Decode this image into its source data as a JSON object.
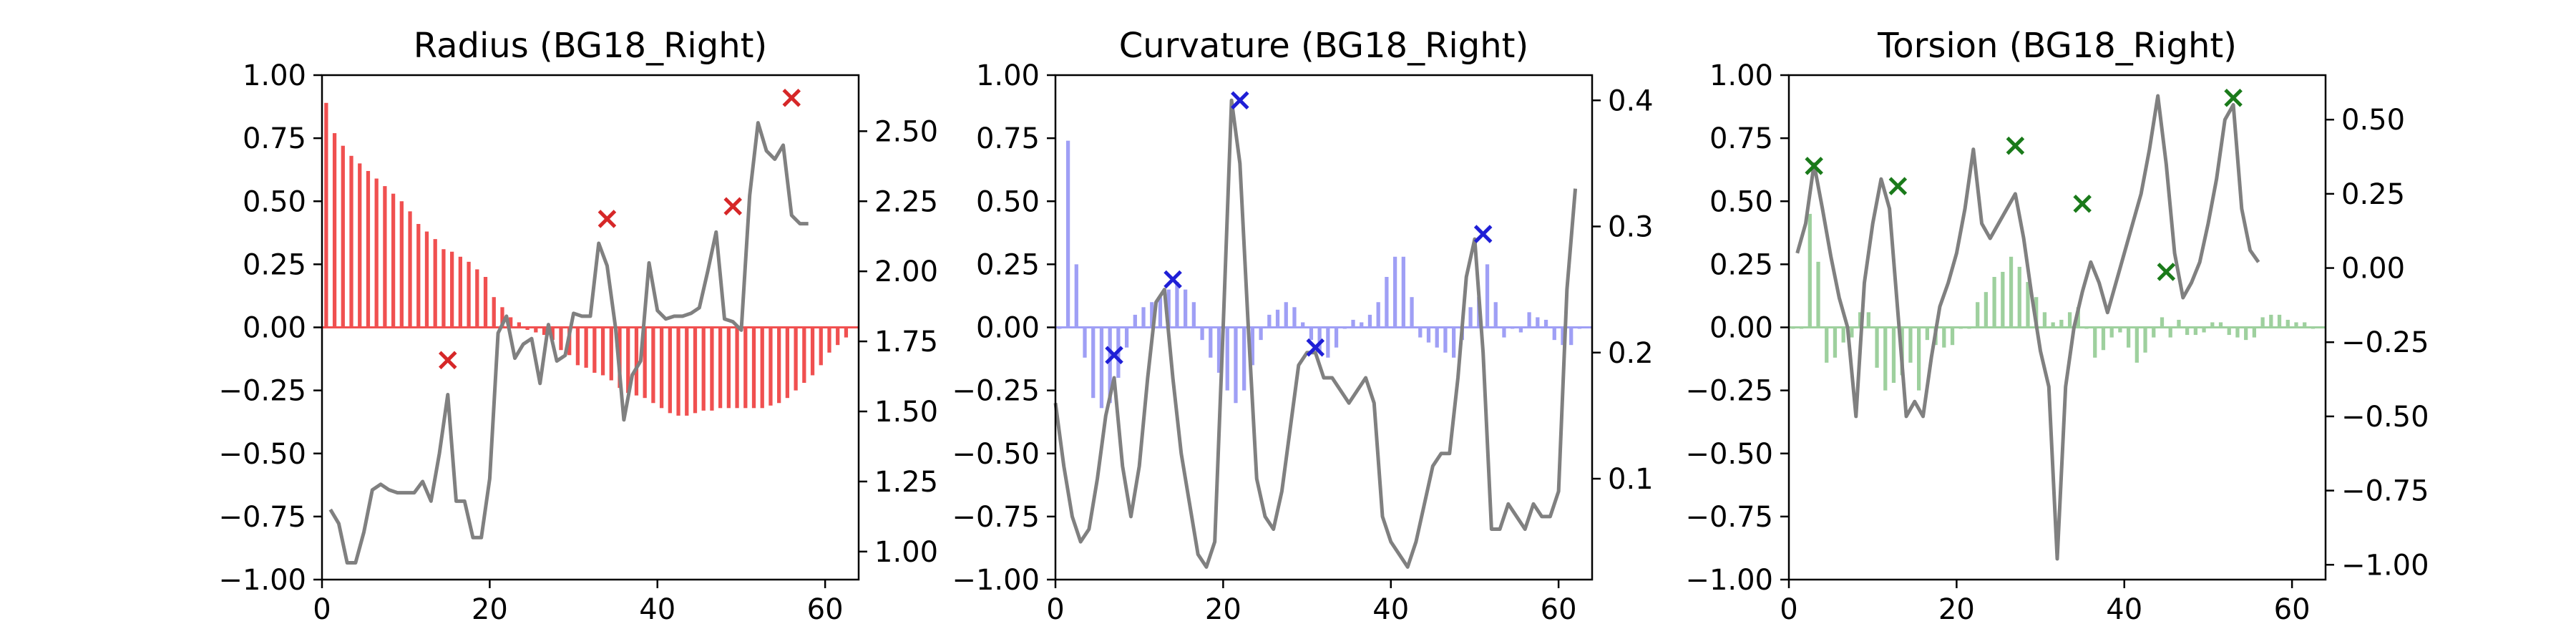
{
  "chart_data": [
    {
      "type": "bar",
      "title": "Radius (BG18_Right)",
      "color": "#f05050",
      "marker_color": "#d62728",
      "line_color": "#808080",
      "xlim": [
        0,
        64
      ],
      "ylim": [
        -1.0,
        1.0
      ],
      "y2lim": [
        0.9,
        2.7
      ],
      "xticks": [
        0,
        20,
        40,
        60
      ],
      "yticks": [
        "1.00",
        "0.75",
        "0.50",
        "0.25",
        "0.00",
        "−0.25",
        "−0.50",
        "−0.75",
        "−1.00"
      ],
      "ytick_values": [
        1.0,
        0.75,
        0.5,
        0.25,
        0.0,
        -0.25,
        -0.5,
        -0.75,
        -1.0
      ],
      "y2ticks": [
        "2.50",
        "2.25",
        "2.00",
        "1.75",
        "1.50",
        "1.25",
        "1.00"
      ],
      "y2tick_values": [
        2.5,
        2.25,
        2.0,
        1.75,
        1.5,
        1.25,
        1.0
      ],
      "bars": [
        0.89,
        0.77,
        0.72,
        0.68,
        0.65,
        0.62,
        0.59,
        0.56,
        0.53,
        0.5,
        0.46,
        0.41,
        0.38,
        0.35,
        0.31,
        0.3,
        0.28,
        0.26,
        0.23,
        0.2,
        0.12,
        0.08,
        0.04,
        0.02,
        -0.01,
        -0.02,
        -0.03,
        -0.05,
        -0.09,
        -0.11,
        -0.15,
        -0.16,
        -0.18,
        -0.19,
        -0.21,
        -0.24,
        -0.26,
        -0.27,
        -0.28,
        -0.3,
        -0.32,
        -0.34,
        -0.35,
        -0.35,
        -0.34,
        -0.33,
        -0.33,
        -0.32,
        -0.32,
        -0.32,
        -0.32,
        -0.32,
        -0.32,
        -0.31,
        -0.3,
        -0.28,
        -0.25,
        -0.22,
        -0.19,
        -0.15,
        -0.1,
        -0.07,
        -0.04
      ],
      "line": [
        1.15,
        1.1,
        0.96,
        0.96,
        1.07,
        1.22,
        1.24,
        1.22,
        1.21,
        1.21,
        1.21,
        1.25,
        1.18,
        1.35,
        1.56,
        1.18,
        1.18,
        1.05,
        1.05,
        1.26,
        1.78,
        1.84,
        1.69,
        1.74,
        1.76,
        1.6,
        1.81,
        1.68,
        1.7,
        1.85,
        1.84,
        1.84,
        2.1,
        2.02,
        1.8,
        1.47,
        1.63,
        1.68,
        2.03,
        1.86,
        1.83,
        1.84,
        1.84,
        1.85,
        1.87,
        2.0,
        2.14,
        1.83,
        1.82,
        1.79,
        2.27,
        2.53,
        2.43,
        2.4,
        2.45,
        2.2,
        2.17,
        2.17
      ],
      "line_x0": 1,
      "peaks": [
        [
          15,
          -0.13
        ],
        [
          34,
          0.43
        ],
        [
          49,
          0.48
        ],
        [
          56,
          0.91
        ]
      ]
    },
    {
      "type": "bar",
      "title": "Curvature (BG18_Right)",
      "color": "#9f9ff5",
      "marker_color": "#1f1fd6",
      "line_color": "#808080",
      "xlim": [
        0,
        64
      ],
      "ylim": [
        -1.0,
        1.0
      ],
      "y2lim": [
        0.02,
        0.42
      ],
      "xticks": [
        0,
        20,
        40,
        60
      ],
      "yticks": [
        "1.00",
        "0.75",
        "0.50",
        "0.25",
        "0.00",
        "−0.25",
        "−0.50",
        "−0.75",
        "−1.00"
      ],
      "ytick_values": [
        1.0,
        0.75,
        0.5,
        0.25,
        0.0,
        -0.25,
        -0.5,
        -0.75,
        -1.0
      ],
      "y2ticks": [
        "0.4",
        "0.3",
        "0.2",
        "0.1"
      ],
      "y2tick_values": [
        0.4,
        0.3,
        0.2,
        0.1
      ],
      "bars": [
        0.0,
        0.74,
        0.25,
        -0.12,
        -0.28,
        -0.32,
        -0.3,
        -0.2,
        -0.08,
        0.05,
        0.08,
        0.1,
        0.12,
        0.15,
        0.18,
        0.15,
        0.1,
        -0.05,
        -0.12,
        -0.18,
        -0.25,
        -0.3,
        -0.25,
        -0.15,
        -0.05,
        0.05,
        0.07,
        0.1,
        0.08,
        0.02,
        -0.05,
        -0.1,
        -0.12,
        -0.08,
        0.0,
        0.03,
        0.02,
        0.05,
        0.1,
        0.2,
        0.28,
        0.28,
        0.12,
        -0.04,
        -0.06,
        -0.08,
        -0.1,
        -0.12,
        -0.05,
        0.08,
        0.12,
        0.25,
        0.1,
        -0.04,
        0.0,
        -0.02,
        0.06,
        0.04,
        0.03,
        -0.05,
        -0.07,
        -0.07,
        0.0
      ],
      "line": [
        0.16,
        0.11,
        0.07,
        0.05,
        0.06,
        0.1,
        0.15,
        0.18,
        0.11,
        0.07,
        0.11,
        0.18,
        0.24,
        0.25,
        0.18,
        0.12,
        0.08,
        0.04,
        0.03,
        0.05,
        0.22,
        0.4,
        0.35,
        0.22,
        0.1,
        0.07,
        0.06,
        0.09,
        0.14,
        0.19,
        0.2,
        0.2,
        0.18,
        0.18,
        0.17,
        0.16,
        0.17,
        0.18,
        0.16,
        0.07,
        0.05,
        0.04,
        0.03,
        0.05,
        0.08,
        0.11,
        0.12,
        0.12,
        0.18,
        0.26,
        0.29,
        0.2,
        0.06,
        0.06,
        0.08,
        0.07,
        0.06,
        0.08,
        0.07,
        0.07,
        0.09,
        0.25,
        0.33
      ],
      "line_x0": 0,
      "peaks": [
        [
          7,
          -0.11
        ],
        [
          14,
          0.19
        ],
        [
          22,
          0.9
        ],
        [
          31,
          -0.08
        ],
        [
          51,
          0.37
        ]
      ]
    },
    {
      "type": "bar",
      "title": "Torsion (BG18_Right)",
      "color": "#9ed09e",
      "marker_color": "#1a7a1a",
      "line_color": "#808080",
      "xlim": [
        0,
        64
      ],
      "ylim": [
        -1.0,
        1.0
      ],
      "y2lim": [
        -1.05,
        0.65
      ],
      "xticks": [
        0,
        20,
        40,
        60
      ],
      "yticks": [
        "1.00",
        "0.75",
        "0.50",
        "0.25",
        "0.00",
        "−0.25",
        "−0.50",
        "−0.75",
        "−1.00"
      ],
      "ytick_values": [
        1.0,
        0.75,
        0.5,
        0.25,
        0.0,
        -0.25,
        -0.5,
        -0.75,
        -1.0
      ],
      "y2ticks": [
        "0.50",
        "0.25",
        "0.00",
        "−0.25",
        "−0.50",
        "−0.75",
        "−1.00"
      ],
      "y2tick_values": [
        0.5,
        0.25,
        0.0,
        -0.25,
        -0.5,
        -0.75,
        -1.0
      ],
      "bars": [
        0.0,
        0.0,
        0.45,
        0.26,
        -0.14,
        -0.12,
        -0.06,
        -0.04,
        0.06,
        0.06,
        -0.16,
        -0.25,
        -0.22,
        -0.19,
        -0.14,
        -0.25,
        -0.05,
        -0.07,
        -0.08,
        -0.07,
        0.0,
        0.0,
        0.1,
        0.14,
        0.2,
        0.22,
        0.28,
        0.24,
        0.18,
        0.12,
        0.06,
        0.02,
        0.03,
        0.06,
        0.08,
        0.0,
        -0.12,
        -0.09,
        -0.04,
        -0.02,
        -0.08,
        -0.14,
        -0.1,
        -0.04,
        0.04,
        -0.04,
        0.03,
        -0.03,
        -0.03,
        -0.02,
        0.02,
        0.02,
        -0.03,
        -0.04,
        -0.05,
        -0.04,
        0.04,
        0.05,
        0.05,
        0.03,
        0.02,
        0.02,
        0.0
      ],
      "line": [
        0.05,
        0.15,
        0.35,
        0.2,
        0.04,
        -0.1,
        -0.2,
        -0.5,
        -0.05,
        0.15,
        0.3,
        0.2,
        -0.15,
        -0.5,
        -0.45,
        -0.5,
        -0.3,
        -0.13,
        -0.05,
        0.05,
        0.2,
        0.4,
        0.15,
        0.1,
        0.15,
        0.2,
        0.25,
        0.1,
        -0.1,
        -0.28,
        -0.4,
        -0.98,
        -0.4,
        -0.2,
        -0.08,
        0.02,
        -0.05,
        -0.15,
        -0.05,
        0.05,
        0.15,
        0.25,
        0.4,
        0.58,
        0.35,
        0.05,
        -0.1,
        -0.05,
        0.02,
        0.15,
        0.3,
        0.5,
        0.55,
        0.2,
        0.06,
        0.02
      ],
      "line_x0": 1,
      "peaks": [
        [
          3,
          0.64
        ],
        [
          13,
          0.56
        ],
        [
          27,
          0.72
        ],
        [
          35,
          0.49
        ],
        [
          45,
          0.22
        ],
        [
          53,
          0.91
        ]
      ]
    }
  ]
}
